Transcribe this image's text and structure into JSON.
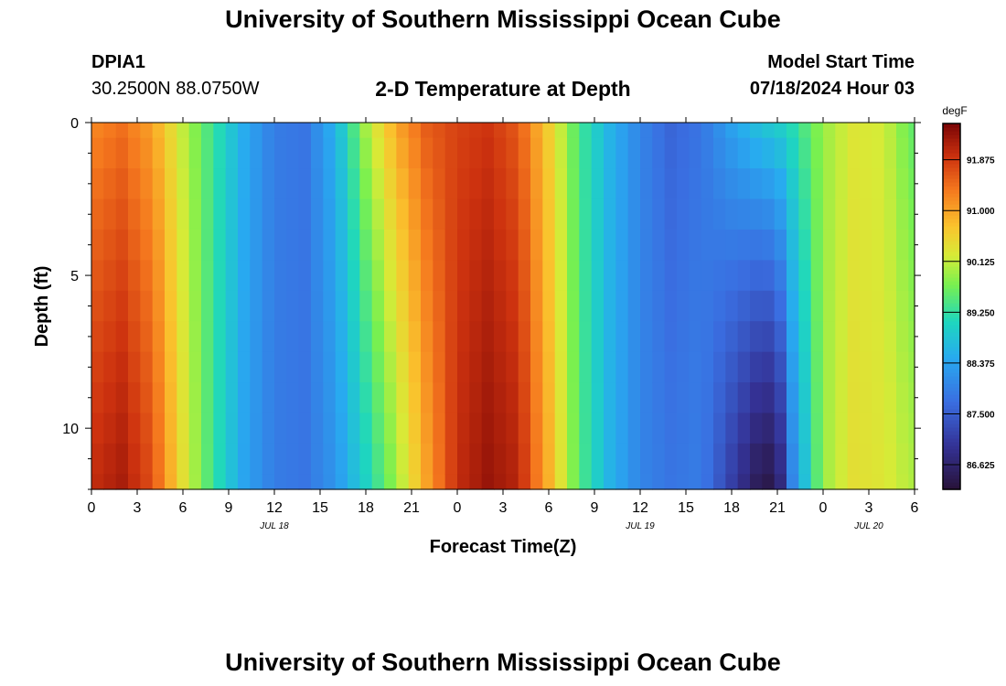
{
  "header": {
    "title": "University of Southern Mississippi Ocean Cube",
    "station_id": "DPIA1",
    "coords": "30.2500N  88.0750W",
    "model_start_label": "Model Start Time",
    "model_start_value": "07/18/2024 Hour 03"
  },
  "footer": {
    "title": "University of Southern Mississippi Ocean Cube"
  },
  "chart_data": {
    "type": "heatmap",
    "title": "2-D Temperature at Depth",
    "xlabel": "Forecast Time(Z)",
    "ylabel": "Depth (ft)",
    "x_hours": [
      0,
      3,
      6,
      9,
      12,
      15,
      18,
      21,
      24,
      27,
      30,
      33,
      36,
      39,
      42,
      45,
      48,
      51,
      54
    ],
    "x_tick_labels": [
      "0",
      "3",
      "6",
      "9",
      "12",
      "15",
      "18",
      "21",
      "0",
      "3",
      "6",
      "9",
      "12",
      "15",
      "18",
      "21",
      "0",
      "3",
      "6"
    ],
    "date_labels": [
      {
        "hour": 12,
        "label": "JUL 18"
      },
      {
        "hour": 36,
        "label": "JUL 19"
      },
      {
        "hour": 51,
        "label": "JUL 20"
      }
    ],
    "xlim": [
      0,
      54
    ],
    "ylim": [
      12,
      0
    ],
    "y_ticks": [
      0,
      5,
      10
    ],
    "colorbar": {
      "units": "degF",
      "range": [
        86.2,
        92.5
      ],
      "ticks": [
        {
          "value": 91.875,
          "label": "91.875"
        },
        {
          "value": 91.0,
          "label": "91.000"
        },
        {
          "value": 90.125,
          "label": "90.125"
        },
        {
          "value": 89.25,
          "label": "89.250"
        },
        {
          "value": 88.375,
          "label": "88.375"
        },
        {
          "value": 87.5,
          "label": "87.500"
        },
        {
          "value": 86.625,
          "label": "86.625"
        }
      ]
    },
    "depth_levels_ft": [
      0,
      0.5,
      1.5,
      2.5,
      3.5,
      4.5,
      5.5,
      6.5,
      7.5,
      8.5,
      9.5,
      10.5,
      11.5,
      12
    ],
    "temperature_profile_by_hour": [
      {
        "hour": 0,
        "surface": 91.2,
        "bottom": 92.0
      },
      {
        "hour": 2,
        "surface": 91.4,
        "bottom": 92.2
      },
      {
        "hour": 4,
        "surface": 91.0,
        "bottom": 91.7
      },
      {
        "hour": 6,
        "surface": 90.1,
        "bottom": 90.4
      },
      {
        "hour": 8,
        "surface": 89.3,
        "bottom": 89.3
      },
      {
        "hour": 10,
        "surface": 88.5,
        "bottom": 88.4
      },
      {
        "hour": 12,
        "surface": 87.9,
        "bottom": 87.9
      },
      {
        "hour": 14,
        "surface": 87.8,
        "bottom": 87.8
      },
      {
        "hour": 16,
        "surface": 88.6,
        "bottom": 88.2
      },
      {
        "hour": 18,
        "surface": 90.0,
        "bottom": 89.0
      },
      {
        "hour": 20,
        "surface": 91.0,
        "bottom": 89.9
      },
      {
        "hour": 22,
        "surface": 91.6,
        "bottom": 91.0
      },
      {
        "hour": 24,
        "surface": 91.8,
        "bottom": 92.0
      },
      {
        "hour": 26,
        "surface": 91.9,
        "bottom": 92.3
      },
      {
        "hour": 28,
        "surface": 91.6,
        "bottom": 92.1
      },
      {
        "hour": 30,
        "surface": 90.6,
        "bottom": 90.9
      },
      {
        "hour": 32,
        "surface": 89.4,
        "bottom": 89.5
      },
      {
        "hour": 34,
        "surface": 88.6,
        "bottom": 88.6
      },
      {
        "hour": 36,
        "surface": 88.0,
        "bottom": 88.0
      },
      {
        "hour": 38,
        "surface": 87.6,
        "bottom": 87.8
      },
      {
        "hour": 40,
        "surface": 87.8,
        "bottom": 87.9
      },
      {
        "hour": 42,
        "surface": 88.4,
        "bottom": 87.1
      },
      {
        "hour": 44,
        "surface": 88.9,
        "bottom": 86.3
      },
      {
        "hour": 45,
        "surface": 89.0,
        "bottom": 86.4
      },
      {
        "hour": 46,
        "surface": 89.2,
        "bottom": 88.0
      },
      {
        "hour": 48,
        "surface": 89.9,
        "bottom": 89.9
      },
      {
        "hour": 50,
        "surface": 90.3,
        "bottom": 90.4
      },
      {
        "hour": 52,
        "surface": 90.2,
        "bottom": 90.3
      },
      {
        "hour": 54,
        "surface": 89.5,
        "bottom": 90.0
      }
    ]
  }
}
